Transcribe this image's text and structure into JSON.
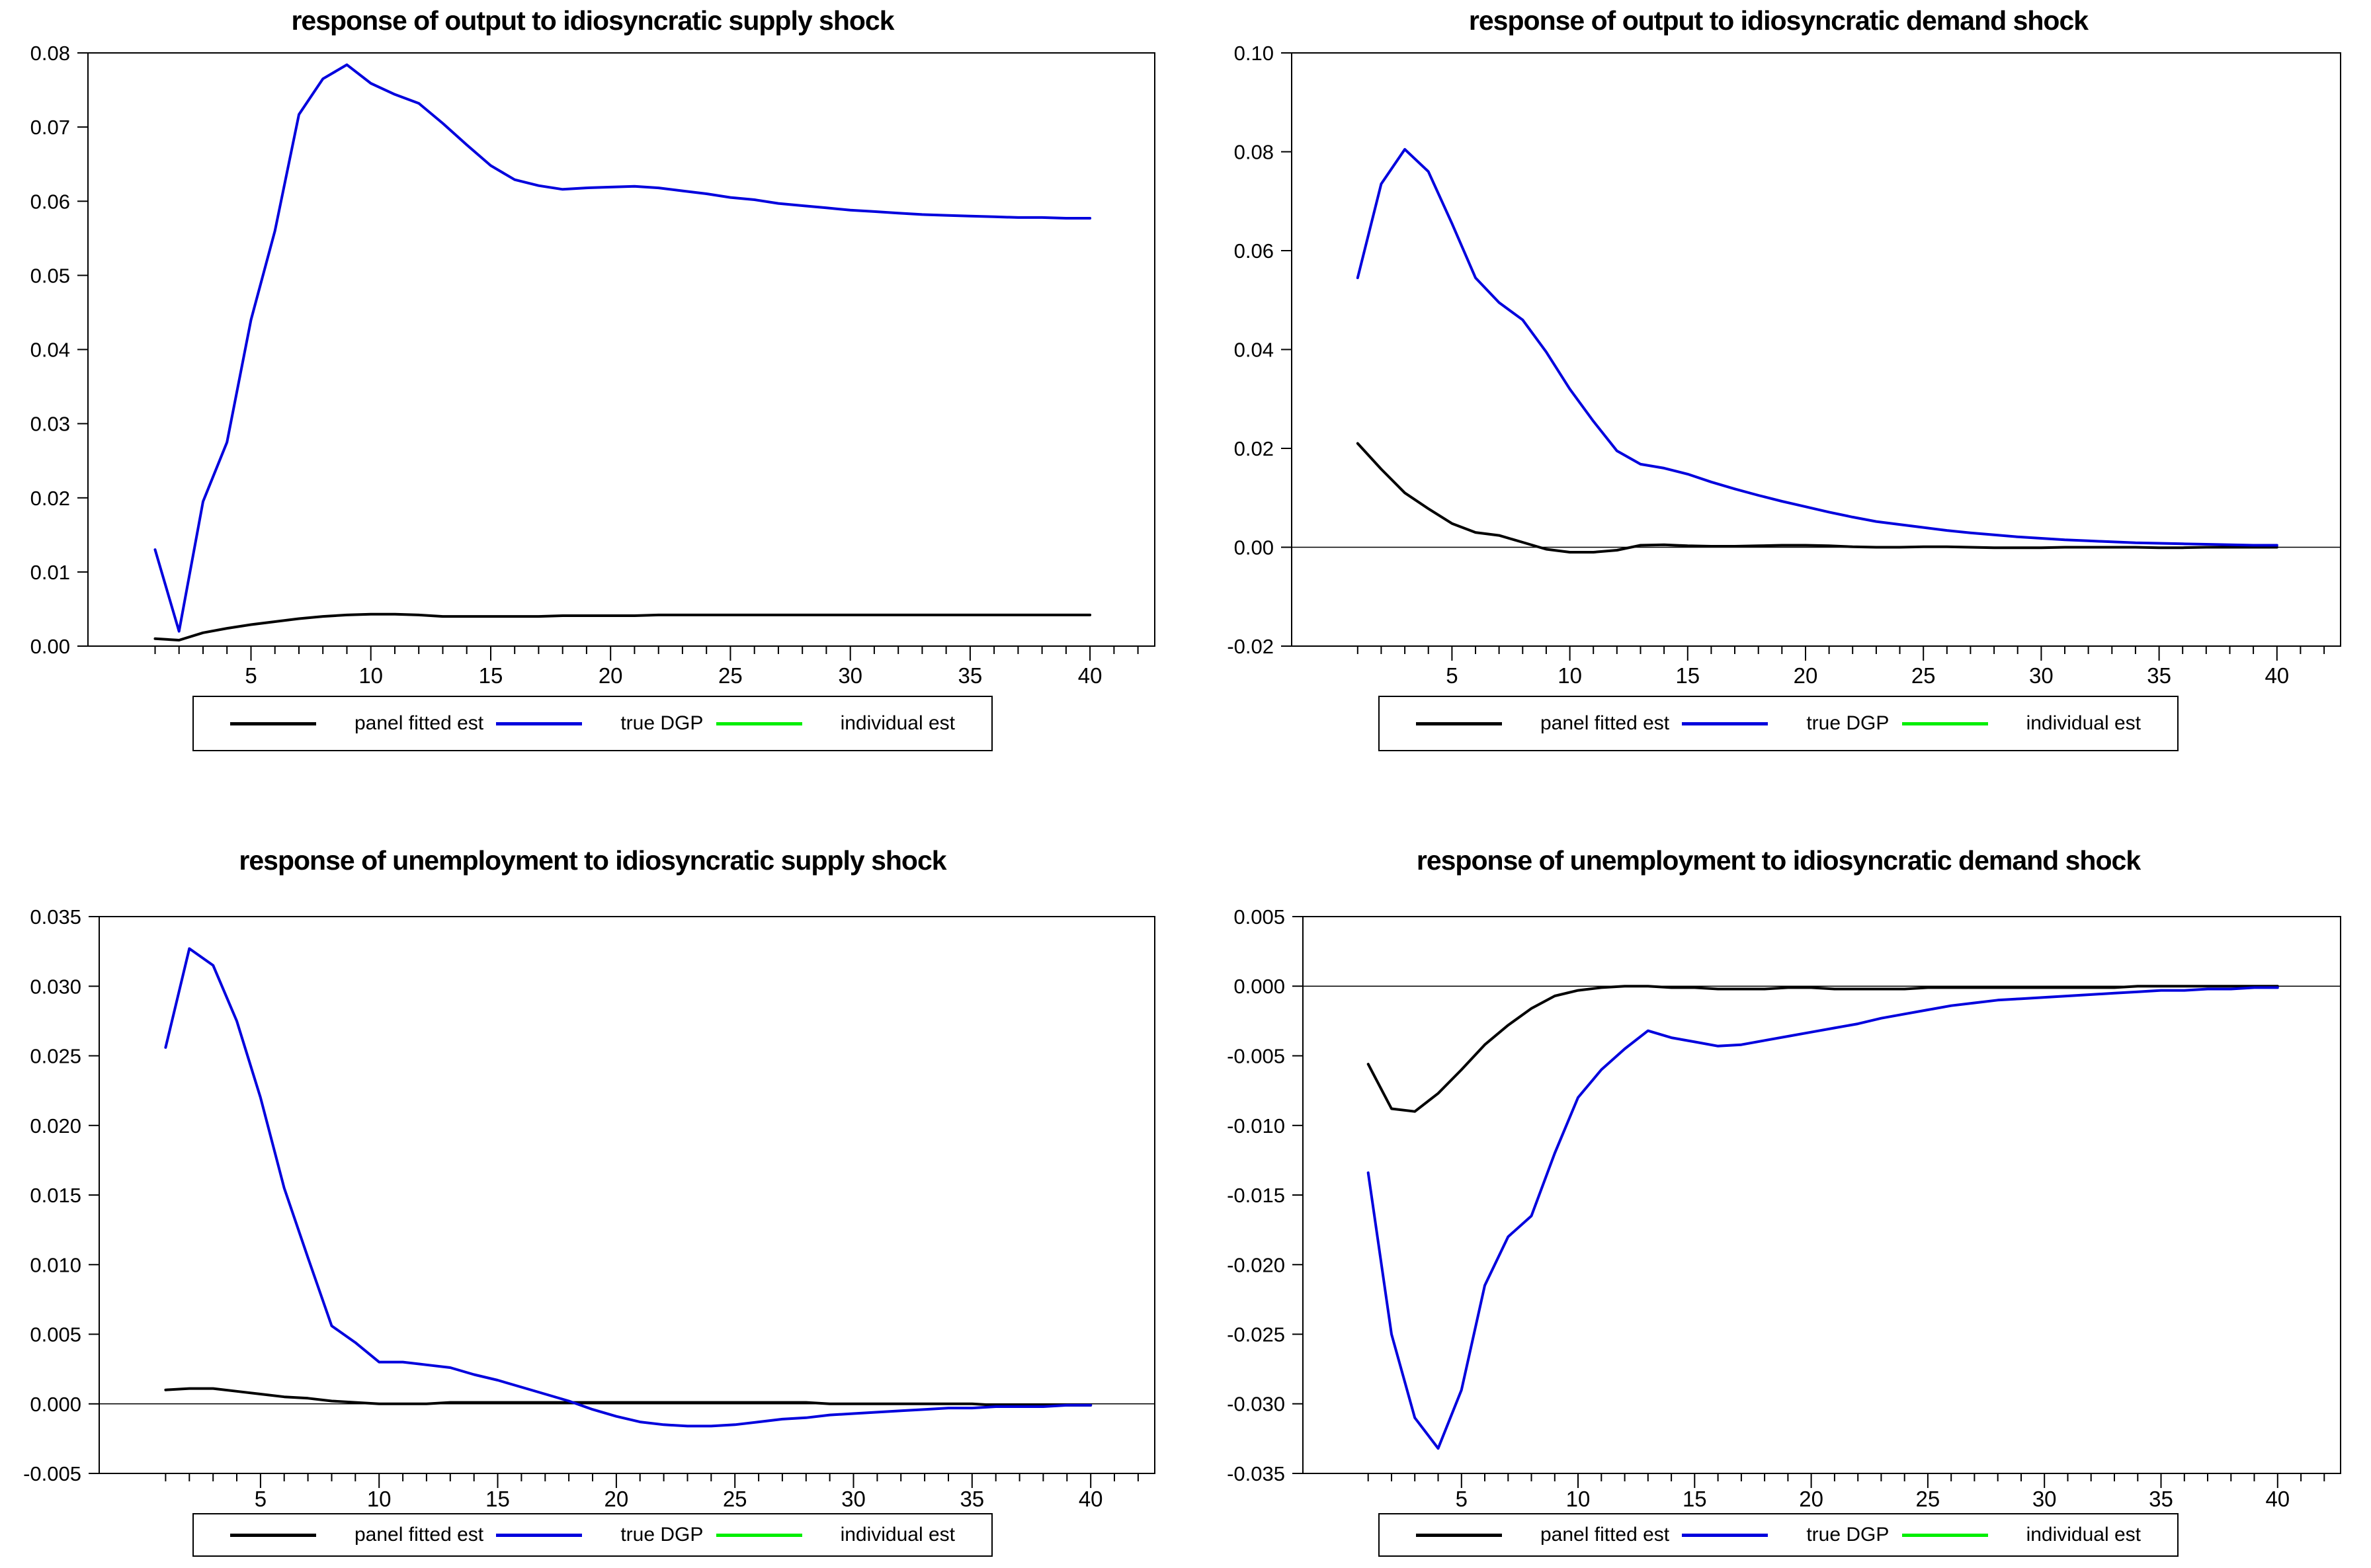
{
  "page": {
    "background": "#ffffff"
  },
  "legend": {
    "items": [
      {
        "label": "panel fitted est",
        "color": "#000000"
      },
      {
        "label": "true DGP",
        "color": "#0000dd"
      },
      {
        "label": "individual est",
        "color": "#00ee00"
      }
    ]
  },
  "x_values": [
    1,
    2,
    3,
    4,
    5,
    6,
    7,
    8,
    9,
    10,
    11,
    12,
    13,
    14,
    15,
    16,
    17,
    18,
    19,
    20,
    21,
    22,
    23,
    24,
    25,
    26,
    27,
    28,
    29,
    30,
    31,
    32,
    33,
    34,
    35,
    36,
    37,
    38,
    39,
    40
  ],
  "chart_data": [
    {
      "type": "line",
      "title": "response of output to idiosyncratic supply shock",
      "xlim": [
        -1.8,
        42.7
      ],
      "ylim": [
        0,
        0.08
      ],
      "yticks": [
        0,
        0.01,
        0.02,
        0.03,
        0.04,
        0.05,
        0.06,
        0.07,
        0.08
      ],
      "ytick_labels": [
        "0.00",
        "0.01",
        "0.02",
        "0.03",
        "0.04",
        "0.05",
        "0.06",
        "0.07",
        "0.08"
      ],
      "xticks_major": [
        5,
        10,
        15,
        20,
        25,
        30,
        35,
        40
      ],
      "xtick_labels": [
        "5",
        "10",
        "15",
        "20",
        "25",
        "30",
        "35",
        "40"
      ],
      "x_minor_range": [
        1,
        42
      ],
      "zero_line": false,
      "grid": false,
      "legend_position": "bottom",
      "series": [
        {
          "name": "panel fitted est",
          "color": "#000000",
          "values": [
            0.001,
            0.0008,
            0.0018,
            0.0024,
            0.0029,
            0.0033,
            0.0037,
            0.004,
            0.0042,
            0.0043,
            0.0043,
            0.0042,
            0.004,
            0.004,
            0.004,
            0.004,
            0.004,
            0.0041,
            0.0041,
            0.0041,
            0.0041,
            0.0042,
            0.0042,
            0.0042,
            0.0042,
            0.0042,
            0.0042,
            0.0042,
            0.0042,
            0.0042,
            0.0042,
            0.0042,
            0.0042,
            0.0042,
            0.0042,
            0.0042,
            0.0042,
            0.0042,
            0.0042,
            0.0042
          ]
        },
        {
          "name": "true DGP",
          "color": "#0000dd",
          "values": [
            0.013,
            0.002,
            0.0195,
            0.0275,
            0.044,
            0.056,
            0.0717,
            0.0765,
            0.0784,
            0.0759,
            0.0744,
            0.0732,
            0.0705,
            0.0676,
            0.0648,
            0.0629,
            0.0621,
            0.0616,
            0.0618,
            0.0619,
            0.062,
            0.0618,
            0.0614,
            0.061,
            0.0605,
            0.0602,
            0.0597,
            0.0594,
            0.0591,
            0.0588,
            0.0586,
            0.0584,
            0.0582,
            0.0581,
            0.058,
            0.0579,
            0.0578,
            0.0578,
            0.0577,
            0.0577
          ]
        }
      ]
    },
    {
      "type": "line",
      "title": "response of output to idiosyncratic demand shock",
      "xlim": [
        -1.8,
        42.7
      ],
      "ylim": [
        -0.02,
        0.1
      ],
      "yticks": [
        -0.02,
        0,
        0.02,
        0.04,
        0.06,
        0.08,
        0.1
      ],
      "ytick_labels": [
        "-0.02",
        "0.00",
        "0.02",
        "0.04",
        "0.06",
        "0.08",
        "0.10"
      ],
      "xticks_major": [
        5,
        10,
        15,
        20,
        25,
        30,
        35,
        40
      ],
      "xtick_labels": [
        "5",
        "10",
        "15",
        "20",
        "25",
        "30",
        "35",
        "40"
      ],
      "x_minor_range": [
        1,
        42
      ],
      "zero_line": true,
      "grid": false,
      "legend_position": "bottom",
      "series": [
        {
          "name": "panel fitted est",
          "color": "#000000",
          "values": [
            0.021,
            0.0158,
            0.011,
            0.0078,
            0.0048,
            0.003,
            0.0024,
            0.001,
            -0.0004,
            -0.001,
            -0.001,
            -0.0006,
            0.0004,
            0.0005,
            0.0003,
            0.0002,
            0.0002,
            0.0003,
            0.0004,
            0.0004,
            0.0003,
            0.0001,
            0.0,
            0.0,
            0.0001,
            0.0001,
            0.0,
            -0.0001,
            -0.0001,
            -0.0001,
            0.0,
            0.0,
            0.0,
            0.0,
            -0.0001,
            -0.0001,
            0.0,
            0.0,
            0.0,
            0.0
          ]
        },
        {
          "name": "true DGP",
          "color": "#0000dd",
          "values": [
            0.0545,
            0.0735,
            0.0805,
            0.076,
            0.0655,
            0.0545,
            0.0495,
            0.046,
            0.0395,
            0.032,
            0.0255,
            0.0195,
            0.0168,
            0.016,
            0.0148,
            0.0132,
            0.0118,
            0.0105,
            0.0093,
            0.0082,
            0.0071,
            0.0061,
            0.0052,
            0.0046,
            0.004,
            0.0034,
            0.0029,
            0.0025,
            0.0021,
            0.0018,
            0.0015,
            0.0013,
            0.0011,
            0.0009,
            0.0008,
            0.0007,
            0.0006,
            0.0005,
            0.0004,
            0.0004
          ]
        }
      ]
    },
    {
      "type": "line",
      "title": "response of unemployment to idiosyncratic supply shock",
      "xlim": [
        -1.8,
        42.7
      ],
      "ylim": [
        -0.005,
        0.035
      ],
      "yticks": [
        -0.005,
        0,
        0.005,
        0.01,
        0.015,
        0.02,
        0.025,
        0.03,
        0.035
      ],
      "ytick_labels": [
        "-0.005",
        "0.000",
        "0.005",
        "0.010",
        "0.015",
        "0.020",
        "0.025",
        "0.030",
        "0.035"
      ],
      "xticks_major": [
        5,
        10,
        15,
        20,
        25,
        30,
        35,
        40
      ],
      "xtick_labels": [
        "5",
        "10",
        "15",
        "20",
        "25",
        "30",
        "35",
        "40"
      ],
      "x_minor_range": [
        1,
        42
      ],
      "zero_line": true,
      "grid": false,
      "legend_position": "bottom",
      "series": [
        {
          "name": "panel fitted est",
          "color": "#000000",
          "values": [
            0.001,
            0.0011,
            0.0011,
            0.0009,
            0.0007,
            0.0005,
            0.0004,
            0.0002,
            0.0001,
            0.0,
            0.0,
            0.0,
            0.0001,
            0.0001,
            0.0001,
            0.0001,
            0.0001,
            0.0001,
            0.0001,
            0.0001,
            0.0001,
            0.0001,
            0.0001,
            0.0001,
            0.0001,
            0.0001,
            0.0001,
            0.0001,
            0.0,
            0.0,
            0.0,
            0.0,
            0.0,
            0.0,
            0.0,
            -0.0001,
            -0.0001,
            -0.0001,
            -0.0001,
            -0.0001
          ]
        },
        {
          "name": "true DGP",
          "color": "#0000dd",
          "values": [
            0.0256,
            0.0327,
            0.0315,
            0.0275,
            0.022,
            0.0155,
            0.0105,
            0.0056,
            0.0044,
            0.003,
            0.003,
            0.0028,
            0.0026,
            0.0021,
            0.0017,
            0.0012,
            0.0007,
            0.0002,
            -0.0004,
            -0.0009,
            -0.0013,
            -0.0015,
            -0.0016,
            -0.0016,
            -0.0015,
            -0.0013,
            -0.0011,
            -0.001,
            -0.0008,
            -0.0007,
            -0.0006,
            -0.0005,
            -0.0004,
            -0.0003,
            -0.0003,
            -0.0002,
            -0.0002,
            -0.0002,
            -0.0001,
            -0.0001
          ]
        }
      ]
    },
    {
      "type": "line",
      "title": "response of unemployment to idiosyncratic demand shock",
      "xlim": [
        -1.8,
        42.7
      ],
      "ylim": [
        -0.035,
        0.005
      ],
      "yticks": [
        -0.035,
        -0.03,
        -0.025,
        -0.02,
        -0.015,
        -0.01,
        -0.005,
        0,
        0.005
      ],
      "ytick_labels": [
        "-0.035",
        "-0.030",
        "-0.025",
        "-0.020",
        "-0.015",
        "-0.010",
        "-0.005",
        "0.000",
        "0.005"
      ],
      "xticks_major": [
        5,
        10,
        15,
        20,
        25,
        30,
        35,
        40
      ],
      "xtick_labels": [
        "5",
        "10",
        "15",
        "20",
        "25",
        "30",
        "35",
        "40"
      ],
      "x_minor_range": [
        1,
        42
      ],
      "zero_line": true,
      "grid": false,
      "legend_position": "bottom",
      "series": [
        {
          "name": "panel fitted est",
          "color": "#000000",
          "values": [
            -0.0056,
            -0.0088,
            -0.009,
            -0.0077,
            -0.006,
            -0.0042,
            -0.0028,
            -0.0016,
            -0.0007,
            -0.0003,
            -0.0001,
            0.0,
            0.0,
            -0.0001,
            -0.0001,
            -0.0002,
            -0.0002,
            -0.0002,
            -0.0001,
            -0.0001,
            -0.0002,
            -0.0002,
            -0.0002,
            -0.0002,
            -0.0001,
            -0.0001,
            -0.0001,
            -0.0001,
            -0.0001,
            -0.0001,
            -0.0001,
            -0.0001,
            -0.0001,
            0.0,
            0.0,
            0.0,
            0.0,
            0.0,
            0.0,
            0.0
          ]
        },
        {
          "name": "true DGP",
          "color": "#0000dd",
          "values": [
            -0.0134,
            -0.025,
            -0.031,
            -0.0332,
            -0.029,
            -0.0215,
            -0.018,
            -0.0165,
            -0.012,
            -0.008,
            -0.006,
            -0.0045,
            -0.0032,
            -0.0037,
            -0.004,
            -0.0043,
            -0.0042,
            -0.0039,
            -0.0036,
            -0.0033,
            -0.003,
            -0.0027,
            -0.0023,
            -0.002,
            -0.0017,
            -0.0014,
            -0.0012,
            -0.001,
            -0.0009,
            -0.0008,
            -0.0007,
            -0.0006,
            -0.0005,
            -0.0004,
            -0.0003,
            -0.0003,
            -0.0002,
            -0.0002,
            -0.0001,
            -0.0001
          ]
        }
      ]
    }
  ]
}
